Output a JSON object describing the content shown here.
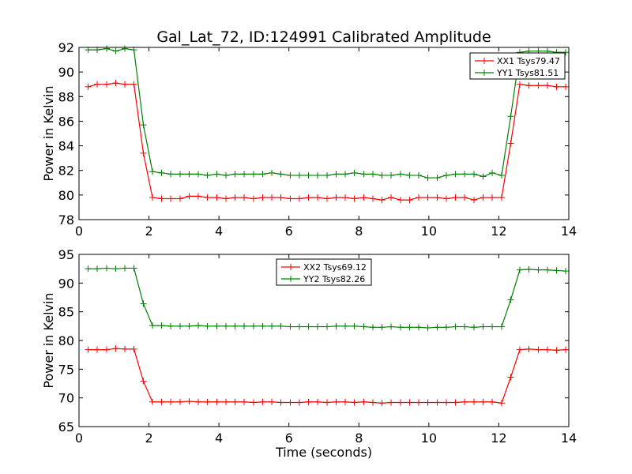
{
  "title": "Gal_Lat_72, ID:124991 Calibrated Amplitude",
  "colors": {
    "xx": "#ff0000",
    "yy": "#008000"
  },
  "chart_data": [
    {
      "type": "line",
      "xlabel": "",
      "ylabel": "Power in Kelvin",
      "xlim": [
        0,
        14
      ],
      "ylim": [
        78,
        92
      ],
      "xticks": [
        0,
        2,
        4,
        6,
        8,
        10,
        12,
        14
      ],
      "yticks": [
        78,
        80,
        82,
        84,
        86,
        88,
        90,
        92
      ],
      "grid": false,
      "legend_position": "top-right",
      "x": [
        0.26,
        0.52,
        0.79,
        1.05,
        1.31,
        1.57,
        1.84,
        2.1,
        2.36,
        2.62,
        2.89,
        3.15,
        3.41,
        3.67,
        3.94,
        4.2,
        4.46,
        4.72,
        4.99,
        5.25,
        5.51,
        5.77,
        6.04,
        6.3,
        6.56,
        6.82,
        7.09,
        7.35,
        7.61,
        7.87,
        8.14,
        8.4,
        8.66,
        8.92,
        9.19,
        9.45,
        9.71,
        9.97,
        10.24,
        10.5,
        10.76,
        11.02,
        11.29,
        11.55,
        11.81,
        12.08,
        12.34,
        12.6,
        12.86,
        13.13,
        13.39,
        13.65,
        13.91
      ],
      "series": [
        {
          "name": "XX1 Tsys79.47",
          "color": "#ff0000",
          "values": [
            88.8,
            89.0,
            89.0,
            89.1,
            89.0,
            89.0,
            83.4,
            79.8,
            79.7,
            79.7,
            79.7,
            79.9,
            79.9,
            79.8,
            79.8,
            79.7,
            79.8,
            79.8,
            79.7,
            79.8,
            79.8,
            79.8,
            79.7,
            79.7,
            79.8,
            79.8,
            79.7,
            79.8,
            79.8,
            79.7,
            79.8,
            79.7,
            79.6,
            79.8,
            79.6,
            79.6,
            79.8,
            79.8,
            79.8,
            79.7,
            79.8,
            79.8,
            79.6,
            79.8,
            79.8,
            79.8,
            84.2,
            89.0,
            88.9,
            88.9,
            88.9,
            88.8,
            88.8
          ]
        },
        {
          "name": "YY1 Tsys81.51",
          "color": "#008000",
          "values": [
            91.8,
            91.8,
            91.9,
            91.7,
            91.9,
            91.8,
            85.7,
            81.9,
            81.8,
            81.7,
            81.7,
            81.7,
            81.7,
            81.6,
            81.7,
            81.6,
            81.7,
            81.7,
            81.7,
            81.7,
            81.8,
            81.7,
            81.6,
            81.6,
            81.6,
            81.6,
            81.6,
            81.7,
            81.7,
            81.8,
            81.7,
            81.7,
            81.6,
            81.6,
            81.7,
            81.6,
            81.6,
            81.4,
            81.4,
            81.6,
            81.7,
            81.7,
            81.7,
            81.5,
            81.8,
            81.6,
            86.4,
            91.6,
            91.7,
            91.7,
            91.7,
            91.6,
            91.6
          ]
        }
      ]
    },
    {
      "type": "line",
      "xlabel": "Time (seconds)",
      "ylabel": "Power in Kelvin",
      "xlim": [
        0,
        14
      ],
      "ylim": [
        65,
        95
      ],
      "xticks": [
        0,
        2,
        4,
        6,
        8,
        10,
        12,
        14
      ],
      "yticks": [
        65,
        70,
        75,
        80,
        85,
        90,
        95
      ],
      "grid": false,
      "legend_position": "top-center",
      "x": [
        0.26,
        0.52,
        0.79,
        1.05,
        1.31,
        1.57,
        1.84,
        2.1,
        2.36,
        2.62,
        2.89,
        3.15,
        3.41,
        3.67,
        3.94,
        4.2,
        4.46,
        4.72,
        4.99,
        5.25,
        5.51,
        5.77,
        6.04,
        6.3,
        6.56,
        6.82,
        7.09,
        7.35,
        7.61,
        7.87,
        8.14,
        8.4,
        8.66,
        8.92,
        9.19,
        9.45,
        9.71,
        9.97,
        10.24,
        10.5,
        10.76,
        11.02,
        11.29,
        11.55,
        11.81,
        12.08,
        12.34,
        12.6,
        12.86,
        13.13,
        13.39,
        13.65,
        13.91
      ],
      "series": [
        {
          "name": "XX2 Tsys69.12",
          "color": "#ff0000",
          "values": [
            78.4,
            78.4,
            78.4,
            78.6,
            78.5,
            78.5,
            72.9,
            69.3,
            69.3,
            69.3,
            69.3,
            69.4,
            69.3,
            69.3,
            69.3,
            69.3,
            69.3,
            69.3,
            69.2,
            69.3,
            69.3,
            69.2,
            69.2,
            69.2,
            69.3,
            69.3,
            69.2,
            69.3,
            69.3,
            69.2,
            69.3,
            69.2,
            69.1,
            69.2,
            69.2,
            69.2,
            69.2,
            69.2,
            69.2,
            69.2,
            69.2,
            69.3,
            69.3,
            69.3,
            69.3,
            69.1,
            73.6,
            78.4,
            78.5,
            78.4,
            78.4,
            78.3,
            78.4
          ]
        },
        {
          "name": "YY2 Tsys82.26",
          "color": "#008000",
          "values": [
            92.5,
            92.5,
            92.6,
            92.5,
            92.6,
            92.6,
            86.4,
            82.6,
            82.6,
            82.5,
            82.5,
            82.5,
            82.6,
            82.5,
            82.5,
            82.5,
            82.5,
            82.5,
            82.5,
            82.5,
            82.5,
            82.5,
            82.4,
            82.4,
            82.4,
            82.4,
            82.4,
            82.5,
            82.5,
            82.5,
            82.4,
            82.3,
            82.3,
            82.4,
            82.3,
            82.3,
            82.3,
            82.2,
            82.3,
            82.3,
            82.4,
            82.4,
            82.3,
            82.4,
            82.4,
            82.4,
            87.1,
            92.3,
            92.4,
            92.3,
            92.3,
            92.2,
            92.1
          ]
        }
      ]
    }
  ]
}
